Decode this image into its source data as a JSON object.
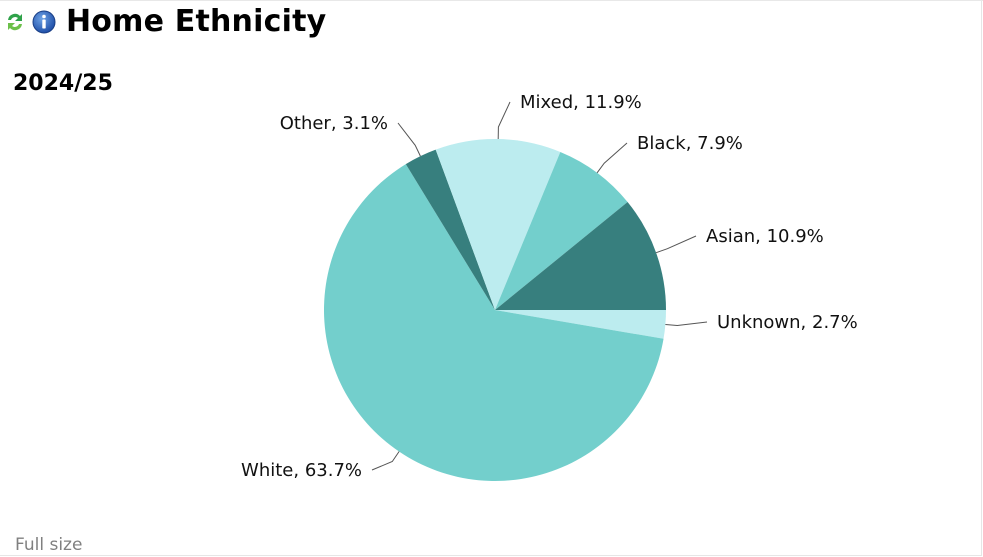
{
  "header": {
    "title": "Home Ethnicity",
    "refresh_icon": "refresh-arrows-icon",
    "info_icon": "info-icon"
  },
  "period_label": "2024/25",
  "footer": {
    "full_size_link": "Full size"
  },
  "colors": {
    "dark_teal": "#377f7e",
    "mid_teal": "#73cfcc",
    "light_teal": "#bcecef",
    "leader": "#555555"
  },
  "chart_data": {
    "type": "pie",
    "title": "",
    "start_angle_deg": 90,
    "direction": "clockwise",
    "slices": [
      {
        "label": "Unknown",
        "value": 2.7,
        "display": "Unknown, 2.7%",
        "color": "#bcecef"
      },
      {
        "label": "White",
        "value": 63.7,
        "display": "White, 63.7%",
        "color": "#73cfcc"
      },
      {
        "label": "Other",
        "value": 3.1,
        "display": "Other, 3.1%",
        "color": "#377f7e"
      },
      {
        "label": "Mixed",
        "value": 11.9,
        "display": "Mixed, 11.9%",
        "color": "#bcecef"
      },
      {
        "label": "Black",
        "value": 7.9,
        "display": "Black, 7.9%",
        "color": "#73cfcc"
      },
      {
        "label": "Asian",
        "value": 10.9,
        "display": "Asian, 10.9%",
        "color": "#377f7e"
      }
    ]
  }
}
